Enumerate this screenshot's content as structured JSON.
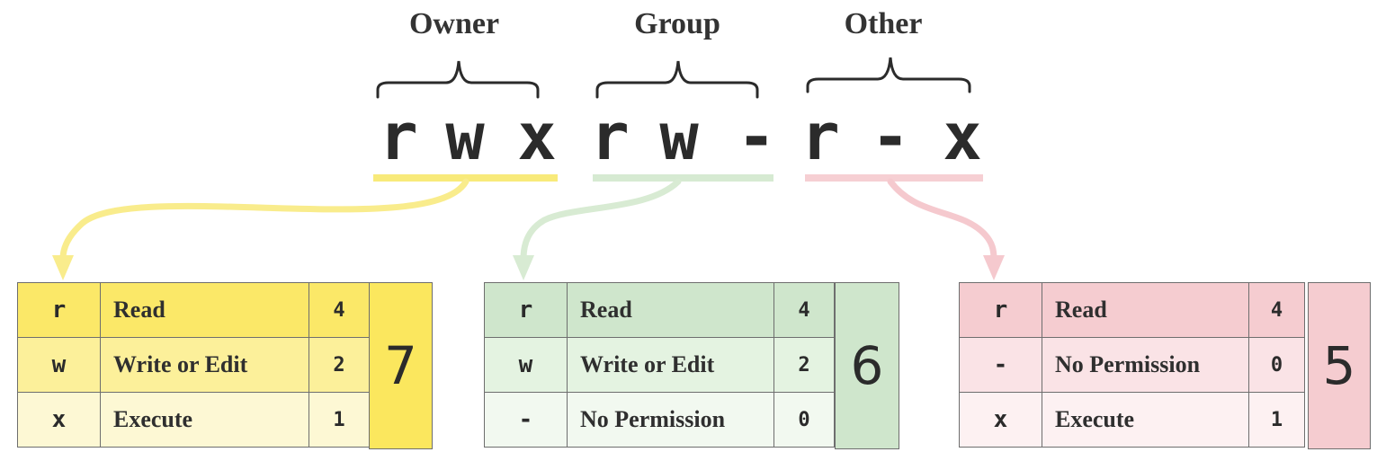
{
  "groups": [
    {
      "label": "Owner",
      "chars": [
        "r",
        "w",
        "x"
      ],
      "underline_color": "#f8ea7a",
      "arrow_color": "#f9ec8c",
      "rows": [
        {
          "symbol": "r",
          "description": "Read",
          "value": "4",
          "bg": "#fbe868"
        },
        {
          "symbol": "w",
          "description": "Write or Edit",
          "value": "2",
          "bg": "#fcf09a"
        },
        {
          "symbol": "x",
          "description": "Execute",
          "value": "1",
          "bg": "#fdf8d4"
        }
      ],
      "total": "7",
      "total_bg": "#fbe75e"
    },
    {
      "label": "Group",
      "chars": [
        "r",
        "w",
        "-"
      ],
      "underline_color": "#d6ead2",
      "arrow_color": "#d8ebd3",
      "rows": [
        {
          "symbol": "r",
          "description": "Read",
          "value": "4",
          "bg": "#cfe6cc"
        },
        {
          "symbol": "w",
          "description": "Write or Edit",
          "value": "2",
          "bg": "#e4f3e1"
        },
        {
          "symbol": "-",
          "description": "No Permission",
          "value": "0",
          "bg": "#f2f9f0"
        }
      ],
      "total": "6",
      "total_bg": "#cfe6cc"
    },
    {
      "label": "Other",
      "chars": [
        "r",
        "-",
        "x"
      ],
      "underline_color": "#f6cfd3",
      "arrow_color": "#f5c9ce",
      "rows": [
        {
          "symbol": "r",
          "description": "Read",
          "value": "4",
          "bg": "#f5ccd0"
        },
        {
          "symbol": "-",
          "description": "No Permission",
          "value": "0",
          "bg": "#fae3e6"
        },
        {
          "symbol": "x",
          "description": "Execute",
          "value": "1",
          "bg": "#fdf1f2"
        }
      ],
      "total": "5",
      "total_bg": "#f5ccd0"
    }
  ]
}
